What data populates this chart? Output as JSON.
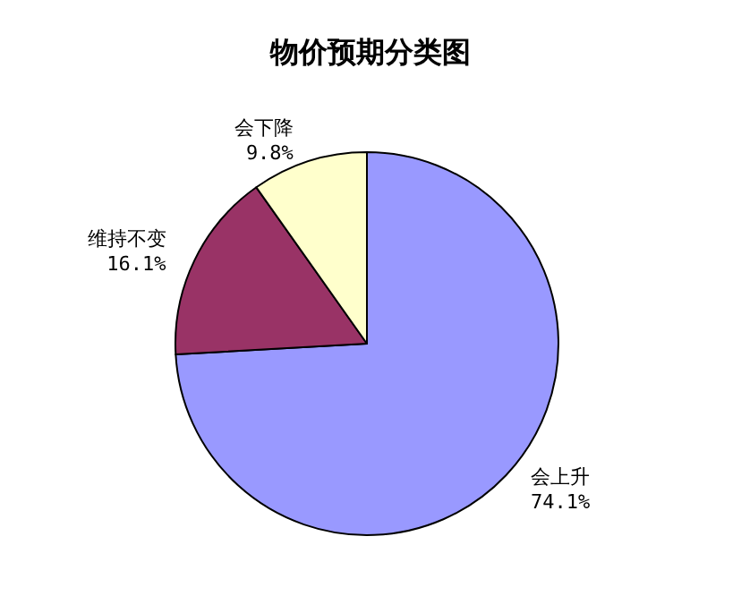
{
  "chart_data": {
    "type": "pie",
    "title": "物价预期分类图",
    "categories": [
      "会上升",
      "维持不变",
      "会下降"
    ],
    "values": [
      74.1,
      16.1,
      9.8
    ],
    "colors": [
      "#9999ff",
      "#993366",
      "#ffffcc"
    ],
    "value_labels": [
      "74.1%",
      "16.1%",
      "9.8%"
    ],
    "legend": false
  }
}
